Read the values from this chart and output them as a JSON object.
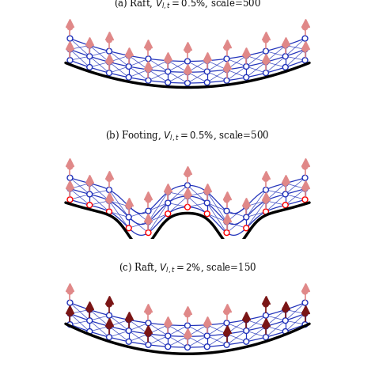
{
  "panels": [
    {
      "label": "(a) Raft, $V_{l,t} = 0.5\\%$, scale=500",
      "curve_type": "raft_a",
      "red_outline_circles": false,
      "dark_markers": false,
      "footing": false
    },
    {
      "label": "(b) Footing, $V_{l,t} = 0.5\\%$, scale=500",
      "curve_type": "footing_b",
      "red_outline_circles": true,
      "dark_markers": false,
      "footing": true
    },
    {
      "label": "(c) Raft, $V_{l,t} = 2\\%$, scale=150",
      "curve_type": "raft_c",
      "red_outline_circles": false,
      "dark_markers": true,
      "footing": false
    }
  ],
  "grid_color": "#2233bb",
  "curve_color": "#000000",
  "marker_pink": "#e08888",
  "marker_dark": "#7a1515",
  "red_circle_color": "#ff0000",
  "background": "#ffffff",
  "text_color": "#111111",
  "title_fontsize": 8.5
}
